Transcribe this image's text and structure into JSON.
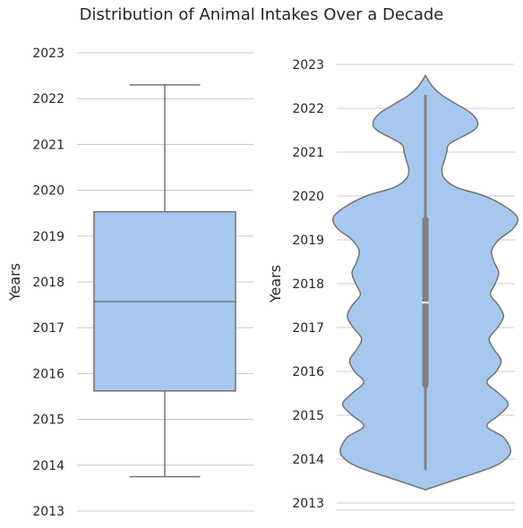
{
  "title": "Distribution of Animal Intakes Over a Decade",
  "chart_data": [
    {
      "type": "box",
      "ylabel": "Years",
      "ylim": [
        2013,
        2023
      ],
      "yticks": [
        2013,
        2014,
        2015,
        2016,
        2017,
        2018,
        2019,
        2020,
        2021,
        2022,
        2023
      ],
      "whisker_low": 2013.75,
      "q1": 2015.62,
      "median": 2017.57,
      "q3": 2019.53,
      "whisker_high": 2022.3,
      "fill": "#a6c8ee",
      "edge": "#737373",
      "grid": true
    },
    {
      "type": "violin",
      "ylabel": "Years",
      "ylim": [
        2013,
        2023
      ],
      "yticks": [
        2013,
        2014,
        2015,
        2016,
        2017,
        2018,
        2019,
        2020,
        2021,
        2022,
        2023
      ],
      "min": 2013.75,
      "q1": 2015.62,
      "median": 2017.57,
      "q3": 2019.53,
      "max": 2022.3,
      "kde_low": 2013.3,
      "kde_high": 2022.75,
      "density": [
        [
          2013.3,
          0.0
        ],
        [
          2013.5,
          0.22
        ],
        [
          2013.8,
          0.55
        ],
        [
          2014.0,
          0.68
        ],
        [
          2014.2,
          0.72
        ],
        [
          2014.5,
          0.66
        ],
        [
          2014.75,
          0.52
        ],
        [
          2015.0,
          0.62
        ],
        [
          2015.25,
          0.7
        ],
        [
          2015.5,
          0.62
        ],
        [
          2015.75,
          0.52
        ],
        [
          2016.0,
          0.6
        ],
        [
          2016.25,
          0.64
        ],
        [
          2016.5,
          0.58
        ],
        [
          2016.75,
          0.54
        ],
        [
          2017.0,
          0.61
        ],
        [
          2017.25,
          0.66
        ],
        [
          2017.5,
          0.62
        ],
        [
          2017.75,
          0.55
        ],
        [
          2018.0,
          0.59
        ],
        [
          2018.25,
          0.62
        ],
        [
          2018.5,
          0.58
        ],
        [
          2018.75,
          0.56
        ],
        [
          2019.0,
          0.62
        ],
        [
          2019.25,
          0.74
        ],
        [
          2019.5,
          0.78
        ],
        [
          2019.75,
          0.68
        ],
        [
          2020.0,
          0.5
        ],
        [
          2020.2,
          0.26
        ],
        [
          2020.4,
          0.16
        ],
        [
          2020.6,
          0.14
        ],
        [
          2020.8,
          0.16
        ],
        [
          2021.0,
          0.18
        ],
        [
          2021.2,
          0.21
        ],
        [
          2021.5,
          0.41
        ],
        [
          2021.7,
          0.44
        ],
        [
          2021.9,
          0.38
        ],
        [
          2022.1,
          0.26
        ],
        [
          2022.3,
          0.14
        ],
        [
          2022.5,
          0.06
        ],
        [
          2022.75,
          0.0
        ]
      ],
      "fill": "#a6c8ee",
      "edge": "#737373",
      "inner_box": "#808080",
      "grid": true
    }
  ]
}
